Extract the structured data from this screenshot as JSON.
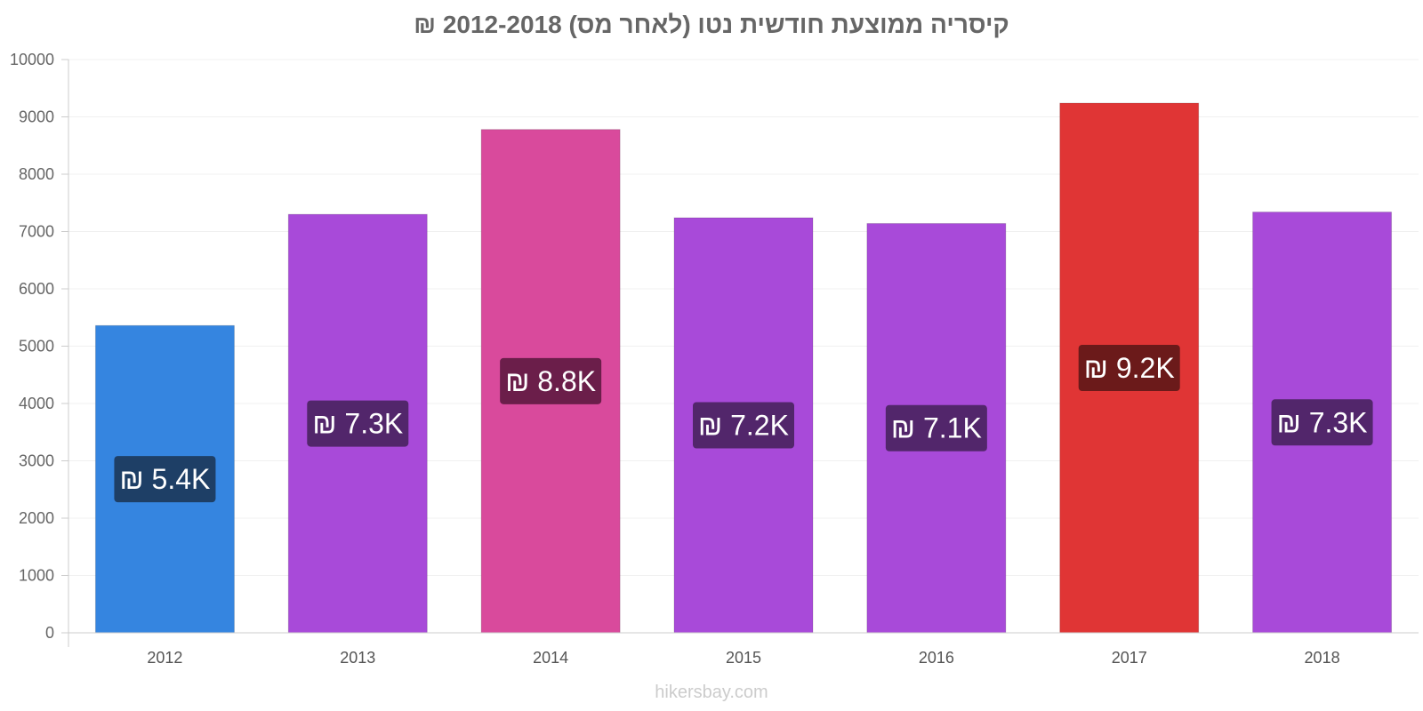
{
  "chart_data": {
    "type": "bar",
    "title": "קיסריה ממוצעת חודשית נטו (לאחר מס) 2012-2018 ₪",
    "xlabel": "",
    "ylabel": "",
    "categories": [
      "2012",
      "2013",
      "2014",
      "2015",
      "2016",
      "2017",
      "2018"
    ],
    "values": [
      5360,
      7300,
      8780,
      7240,
      7140,
      9240,
      7340
    ],
    "data_labels": [
      "₪ 5.4K",
      "₪ 7.3K",
      "₪ 8.8K",
      "₪ 7.2K",
      "₪ 7.1K",
      "₪ 9.2K",
      "₪ 7.3K"
    ],
    "bar_colors": [
      "#3585E0",
      "#A84AD9",
      "#D94A9C",
      "#A84AD9",
      "#A84AD9",
      "#E03535",
      "#A84AD9"
    ],
    "label_box_colors": [
      "#1E3F66",
      "#52266B",
      "#6B1E4A",
      "#52266B",
      "#52266B",
      "#6B1A1A",
      "#52266B"
    ],
    "ylim": [
      0,
      10000
    ],
    "yticks": [
      "0",
      "1000",
      "2000",
      "3000",
      "4000",
      "5000",
      "6000",
      "7000",
      "8000",
      "9000",
      "10000"
    ],
    "grid": true,
    "legend": "none"
  },
  "watermark": "hikersbay.com"
}
